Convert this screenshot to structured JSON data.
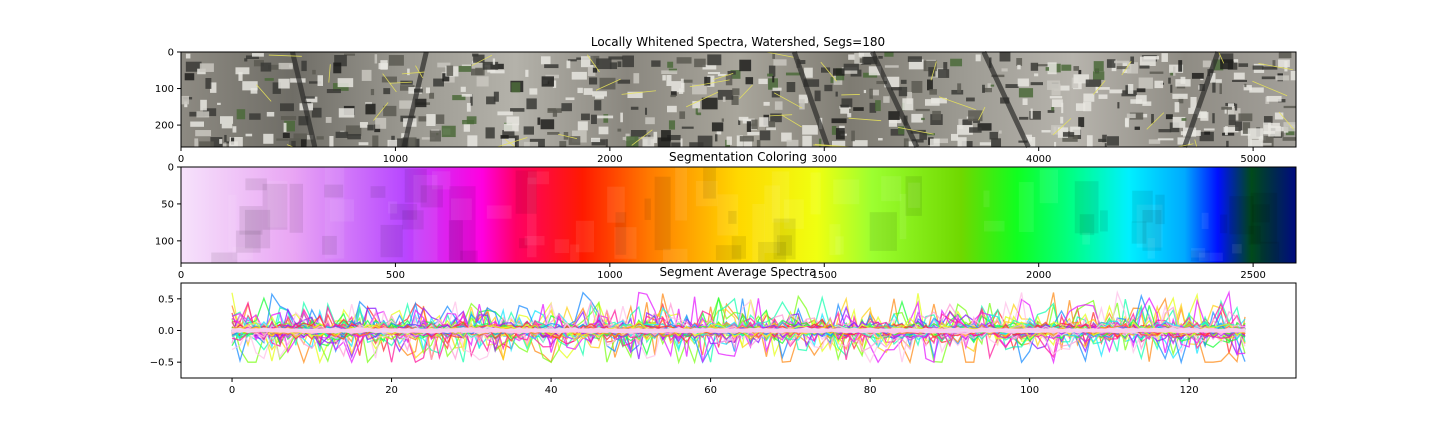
{
  "chart_data": [
    {
      "type": "image",
      "title": "Locally Whitened Spectra, Watershed, Segs=180",
      "content": "aerial photograph strip with segment boundary overlay",
      "xlim": [
        0,
        5200
      ],
      "ylim": [
        260,
        0
      ],
      "xticks": [
        0,
        1000,
        2000,
        3000,
        4000,
        5000
      ],
      "yticks": [
        0,
        100,
        200
      ]
    },
    {
      "type": "heatmap",
      "title": "Segmentation Coloring",
      "colormap": "hsv (reversed) — pink/magenta at left through red, yellow, green, cyan, blue to navy at right",
      "xlim": [
        0,
        2600
      ],
      "ylim": [
        130,
        0
      ],
      "xticks": [
        0,
        500,
        1000,
        1500,
        2000,
        2500
      ],
      "yticks": [
        0,
        50,
        100
      ]
    },
    {
      "type": "line",
      "title": "Segment Average Spectra",
      "xlim": [
        -6.4,
        133.4
      ],
      "ylim": [
        -0.75,
        0.75
      ],
      "xticks": [
        0,
        20,
        40,
        60,
        80,
        100,
        120
      ],
      "yticks": [
        0.5,
        0.0,
        -0.5
      ],
      "ytick_labels": [
        "0.5",
        "0.0",
        "−0.5"
      ],
      "x_range": [
        0,
        127
      ],
      "n_series_drawn": 60,
      "series_colors": [
        "#ff3030",
        "#ff8c1a",
        "#ffd21a",
        "#e6ff1a",
        "#7dff1a",
        "#1aff3a",
        "#1affb0",
        "#1ae6ff",
        "#1a8cff",
        "#8c1aff",
        "#e61aff",
        "#ff1a9c",
        "#ff9ad5",
        "#ffc0e8"
      ]
    }
  ]
}
